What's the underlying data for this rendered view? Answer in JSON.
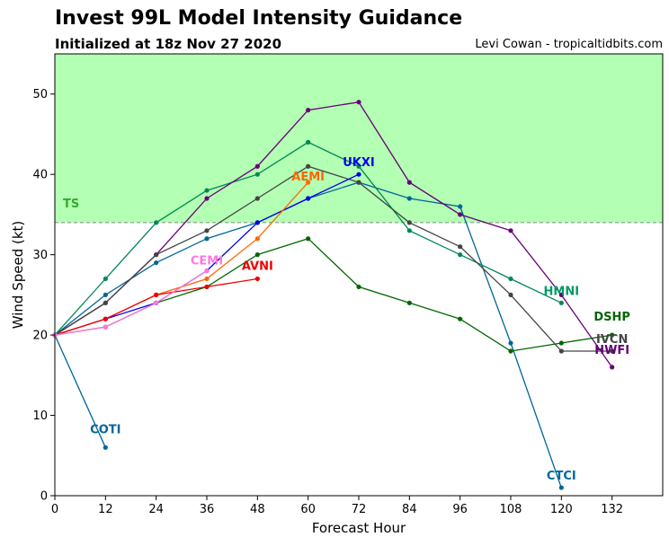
{
  "header": {
    "title": "Invest 99L Model Intensity Guidance",
    "subtitle": "Initialized at 18z Nov 27 2020",
    "credit": "Levi Cowan - tropicaltidbits.com"
  },
  "chart_data": {
    "type": "line",
    "xlabel": "Forecast Hour",
    "ylabel": "Wind Speed (kt)",
    "xlim": [
      0,
      144
    ],
    "ylim": [
      0,
      55
    ],
    "xticks": [
      0,
      12,
      24,
      36,
      48,
      60,
      72,
      84,
      96,
      108,
      120,
      132
    ],
    "yticks": [
      0,
      10,
      20,
      30,
      40,
      50
    ],
    "grid": false,
    "ts_threshold": 34,
    "ts_label": "TS",
    "ts_fill_color": "#b3ffb3",
    "ts_text_color": "#33aa33",
    "series": [
      {
        "name": "COTI",
        "color": "#006699",
        "x": [
          0,
          12
        ],
        "y": [
          20,
          6
        ]
      },
      {
        "name": "CTCI",
        "color": "#006699",
        "x": [
          0,
          12,
          24,
          36,
          48,
          60,
          72,
          84,
          96,
          108,
          120
        ],
        "y": [
          20,
          25,
          29,
          32,
          34,
          37,
          39,
          37,
          36,
          19,
          1
        ]
      },
      {
        "name": "HMNI",
        "color": "#008855",
        "x": [
          0,
          12,
          24,
          36,
          48,
          60,
          72,
          84,
          96,
          108,
          120
        ],
        "y": [
          20,
          27,
          34,
          38,
          40,
          44,
          41,
          33,
          30,
          27,
          24
        ]
      },
      {
        "name": "HWFI",
        "color": "#660077",
        "x": [
          0,
          12,
          24,
          36,
          48,
          60,
          72,
          84,
          96,
          108,
          120,
          132
        ],
        "y": [
          20,
          24,
          30,
          37,
          41,
          48,
          49,
          39,
          35,
          33,
          25,
          16
        ]
      },
      {
        "name": "IVCN",
        "color": "#444444",
        "x": [
          0,
          12,
          24,
          36,
          48,
          60,
          72,
          84,
          96,
          108,
          120,
          132
        ],
        "y": [
          20,
          24,
          30,
          33,
          37,
          41,
          39,
          34,
          31,
          25,
          18,
          18
        ]
      },
      {
        "name": "DSHP",
        "color": "#006600",
        "x": [
          0,
          12,
          24,
          36,
          48,
          60,
          72,
          84,
          96,
          108,
          120,
          132
        ],
        "y": [
          20,
          21,
          24,
          26,
          30,
          32,
          26,
          24,
          22,
          18,
          19,
          20
        ]
      },
      {
        "name": "UKXI",
        "color": "#0000ee",
        "x": [
          0,
          12,
          24,
          36,
          48,
          60,
          72
        ],
        "y": [
          20,
          22,
          24,
          28,
          34,
          37,
          40
        ]
      },
      {
        "name": "AEMI",
        "color": "#ff6600",
        "x": [
          0,
          12,
          24,
          36,
          48,
          60
        ],
        "y": [
          20,
          22,
          25,
          27,
          32,
          39
        ]
      },
      {
        "name": "AVNI",
        "color": "#ee0000",
        "x": [
          0,
          12,
          24,
          36,
          48
        ],
        "y": [
          20,
          22,
          25,
          26,
          27
        ]
      },
      {
        "name": "CEMI",
        "color": "#ff77dd",
        "x": [
          0,
          12,
          24,
          36
        ],
        "y": [
          20,
          21,
          24,
          28
        ]
      }
    ]
  }
}
